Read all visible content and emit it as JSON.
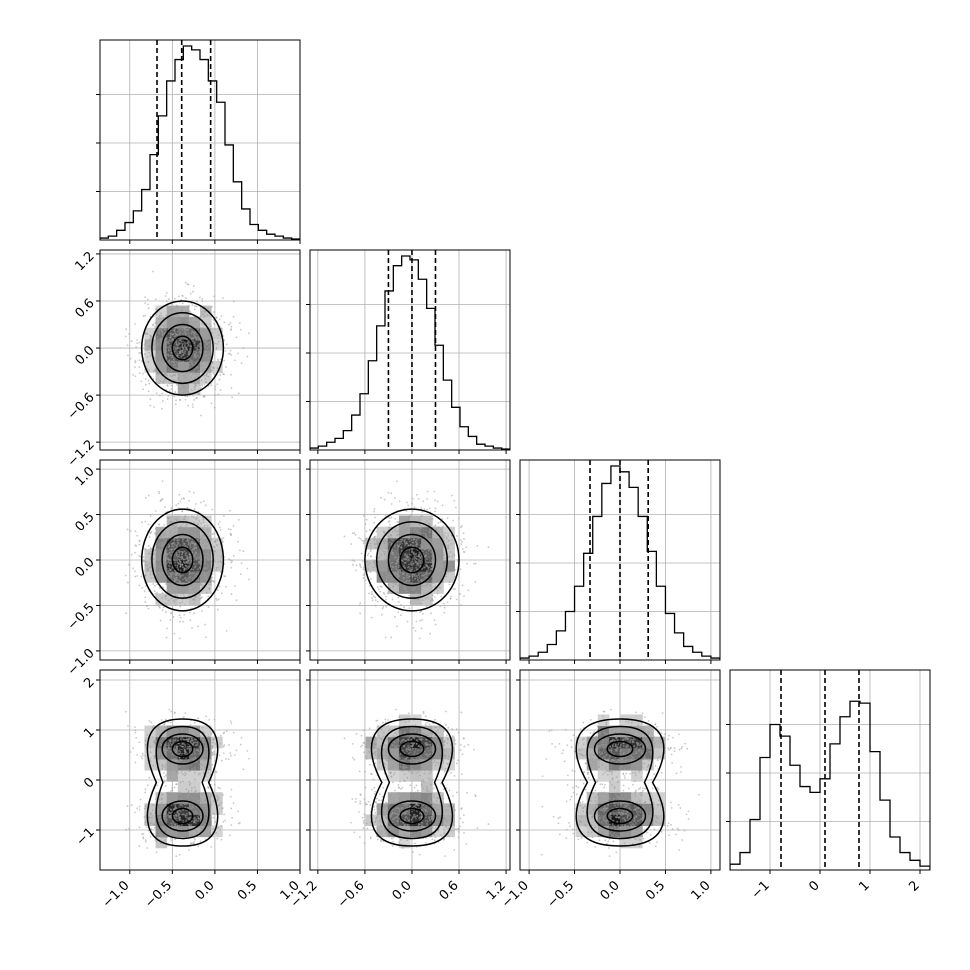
{
  "chart_data": {
    "type": "corner",
    "n_params": 4,
    "ranges": [
      [
        -1.35,
        1.0
      ],
      [
        -1.3,
        1.25
      ],
      [
        -1.1,
        1.1
      ],
      [
        -1.8,
        2.2
      ]
    ],
    "ticks": [
      {
        "values": [
          -1.0,
          -0.5,
          0.0,
          0.5,
          1.0
        ],
        "labels": [
          "−1.0",
          "−0.5",
          "0.0",
          "0.5",
          "1.0"
        ]
      },
      {
        "values": [
          -1.2,
          -0.6,
          0.0,
          0.6,
          1.2
        ],
        "labels": [
          "−1.2",
          "−0.6",
          "0.0",
          "0.6",
          "1.2"
        ]
      },
      {
        "values": [
          -1.0,
          -0.5,
          0.0,
          0.5,
          1.0
        ],
        "labels": [
          "−1.0",
          "−0.5",
          "0.0",
          "0.5",
          "1.0"
        ]
      },
      {
        "values": [
          -1,
          0,
          1,
          2
        ],
        "labels": [
          "−1",
          "0",
          "1",
          "2"
        ]
      }
    ],
    "histograms": [
      {
        "bin_edges_range": [
          -1.35,
          1.0
        ],
        "counts": [
          0.01,
          0.02,
          0.05,
          0.09,
          0.15,
          0.26,
          0.44,
          0.64,
          0.82,
          0.93,
          1.0,
          0.98,
          0.93,
          0.82,
          0.71,
          0.49,
          0.3,
          0.16,
          0.08,
          0.05,
          0.03,
          0.02,
          0.01,
          0.005
        ],
        "quantiles": [
          -0.68,
          -0.39,
          -0.05
        ]
      },
      {
        "bin_edges_range": [
          -1.3,
          1.25
        ],
        "counts": [
          0.01,
          0.02,
          0.04,
          0.06,
          0.1,
          0.18,
          0.29,
          0.46,
          0.64,
          0.82,
          0.95,
          1.0,
          0.98,
          0.88,
          0.73,
          0.54,
          0.36,
          0.22,
          0.12,
          0.07,
          0.03,
          0.02,
          0.01,
          0.005
        ],
        "quantiles": [
          -0.3,
          0.0,
          0.3
        ]
      },
      {
        "bin_edges_range": [
          -1.1,
          1.1
        ],
        "counts": [
          0.01,
          0.02,
          0.04,
          0.08,
          0.15,
          0.25,
          0.38,
          0.55,
          0.74,
          0.91,
          1.0,
          0.97,
          0.89,
          0.74,
          0.56,
          0.38,
          0.24,
          0.14,
          0.07,
          0.04,
          0.02,
          0.01
        ],
        "quantiles": [
          -0.33,
          0.0,
          0.31
        ]
      },
      {
        "bin_edges_range": [
          -1.8,
          2.2
        ],
        "counts": [
          0.03,
          0.09,
          0.26,
          0.58,
          0.75,
          0.69,
          0.54,
          0.43,
          0.4,
          0.47,
          0.65,
          0.79,
          0.87,
          0.86,
          0.61,
          0.36,
          0.17,
          0.09,
          0.05,
          0.02
        ],
        "quantiles": [
          -0.78,
          0.1,
          0.78
        ]
      }
    ],
    "joint_means": {
      "x0": -0.38,
      "x1": 0.0,
      "x2": 0.0,
      "x3_modes": [
        -0.72,
        0.62
      ]
    },
    "joint_sigmas": {
      "x0": 0.24,
      "x1": 0.3,
      "x2": 0.28,
      "x3_mode": 0.3
    },
    "contour_levels_sigma": [
      0.5,
      1.0,
      1.5,
      2.0
    ],
    "grid": true,
    "quantile_line_style": "dashed"
  }
}
